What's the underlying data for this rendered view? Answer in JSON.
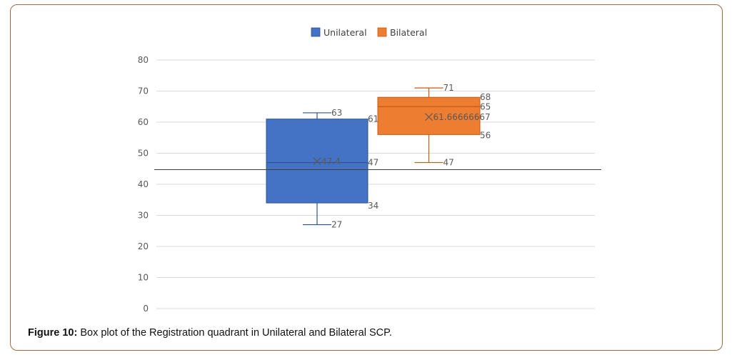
{
  "figure": {
    "caption_label": "Figure 10:",
    "caption_text": "Box plot of the Registration quadrant in Unilateral and Bilateral SCP."
  },
  "chart_data": {
    "type": "boxplot",
    "ylim": [
      0,
      80
    ],
    "yticks": [
      0,
      10,
      20,
      30,
      40,
      50,
      60,
      70,
      80
    ],
    "grid": true,
    "legend_position": "top-center",
    "reference_line_y": 44.7,
    "series": [
      {
        "name": "Unilateral",
        "color": "#4472c4",
        "min": 27,
        "q1": 34,
        "median": 47,
        "q3": 61,
        "max": 63,
        "mean": 47.4,
        "labels": {
          "min": "27",
          "q1": "34",
          "median": "47",
          "q3": "61",
          "max": "63",
          "mean": "47.4"
        }
      },
      {
        "name": "Bilateral",
        "color": "#ed7d31",
        "min": 47,
        "q1": 56,
        "median": 65,
        "q3": 68,
        "max": 71,
        "mean": 61.66666667,
        "labels": {
          "min": "47",
          "q1": "56",
          "median": "65",
          "q3": "68",
          "max": "71",
          "mean": "61.66666667"
        }
      }
    ]
  }
}
